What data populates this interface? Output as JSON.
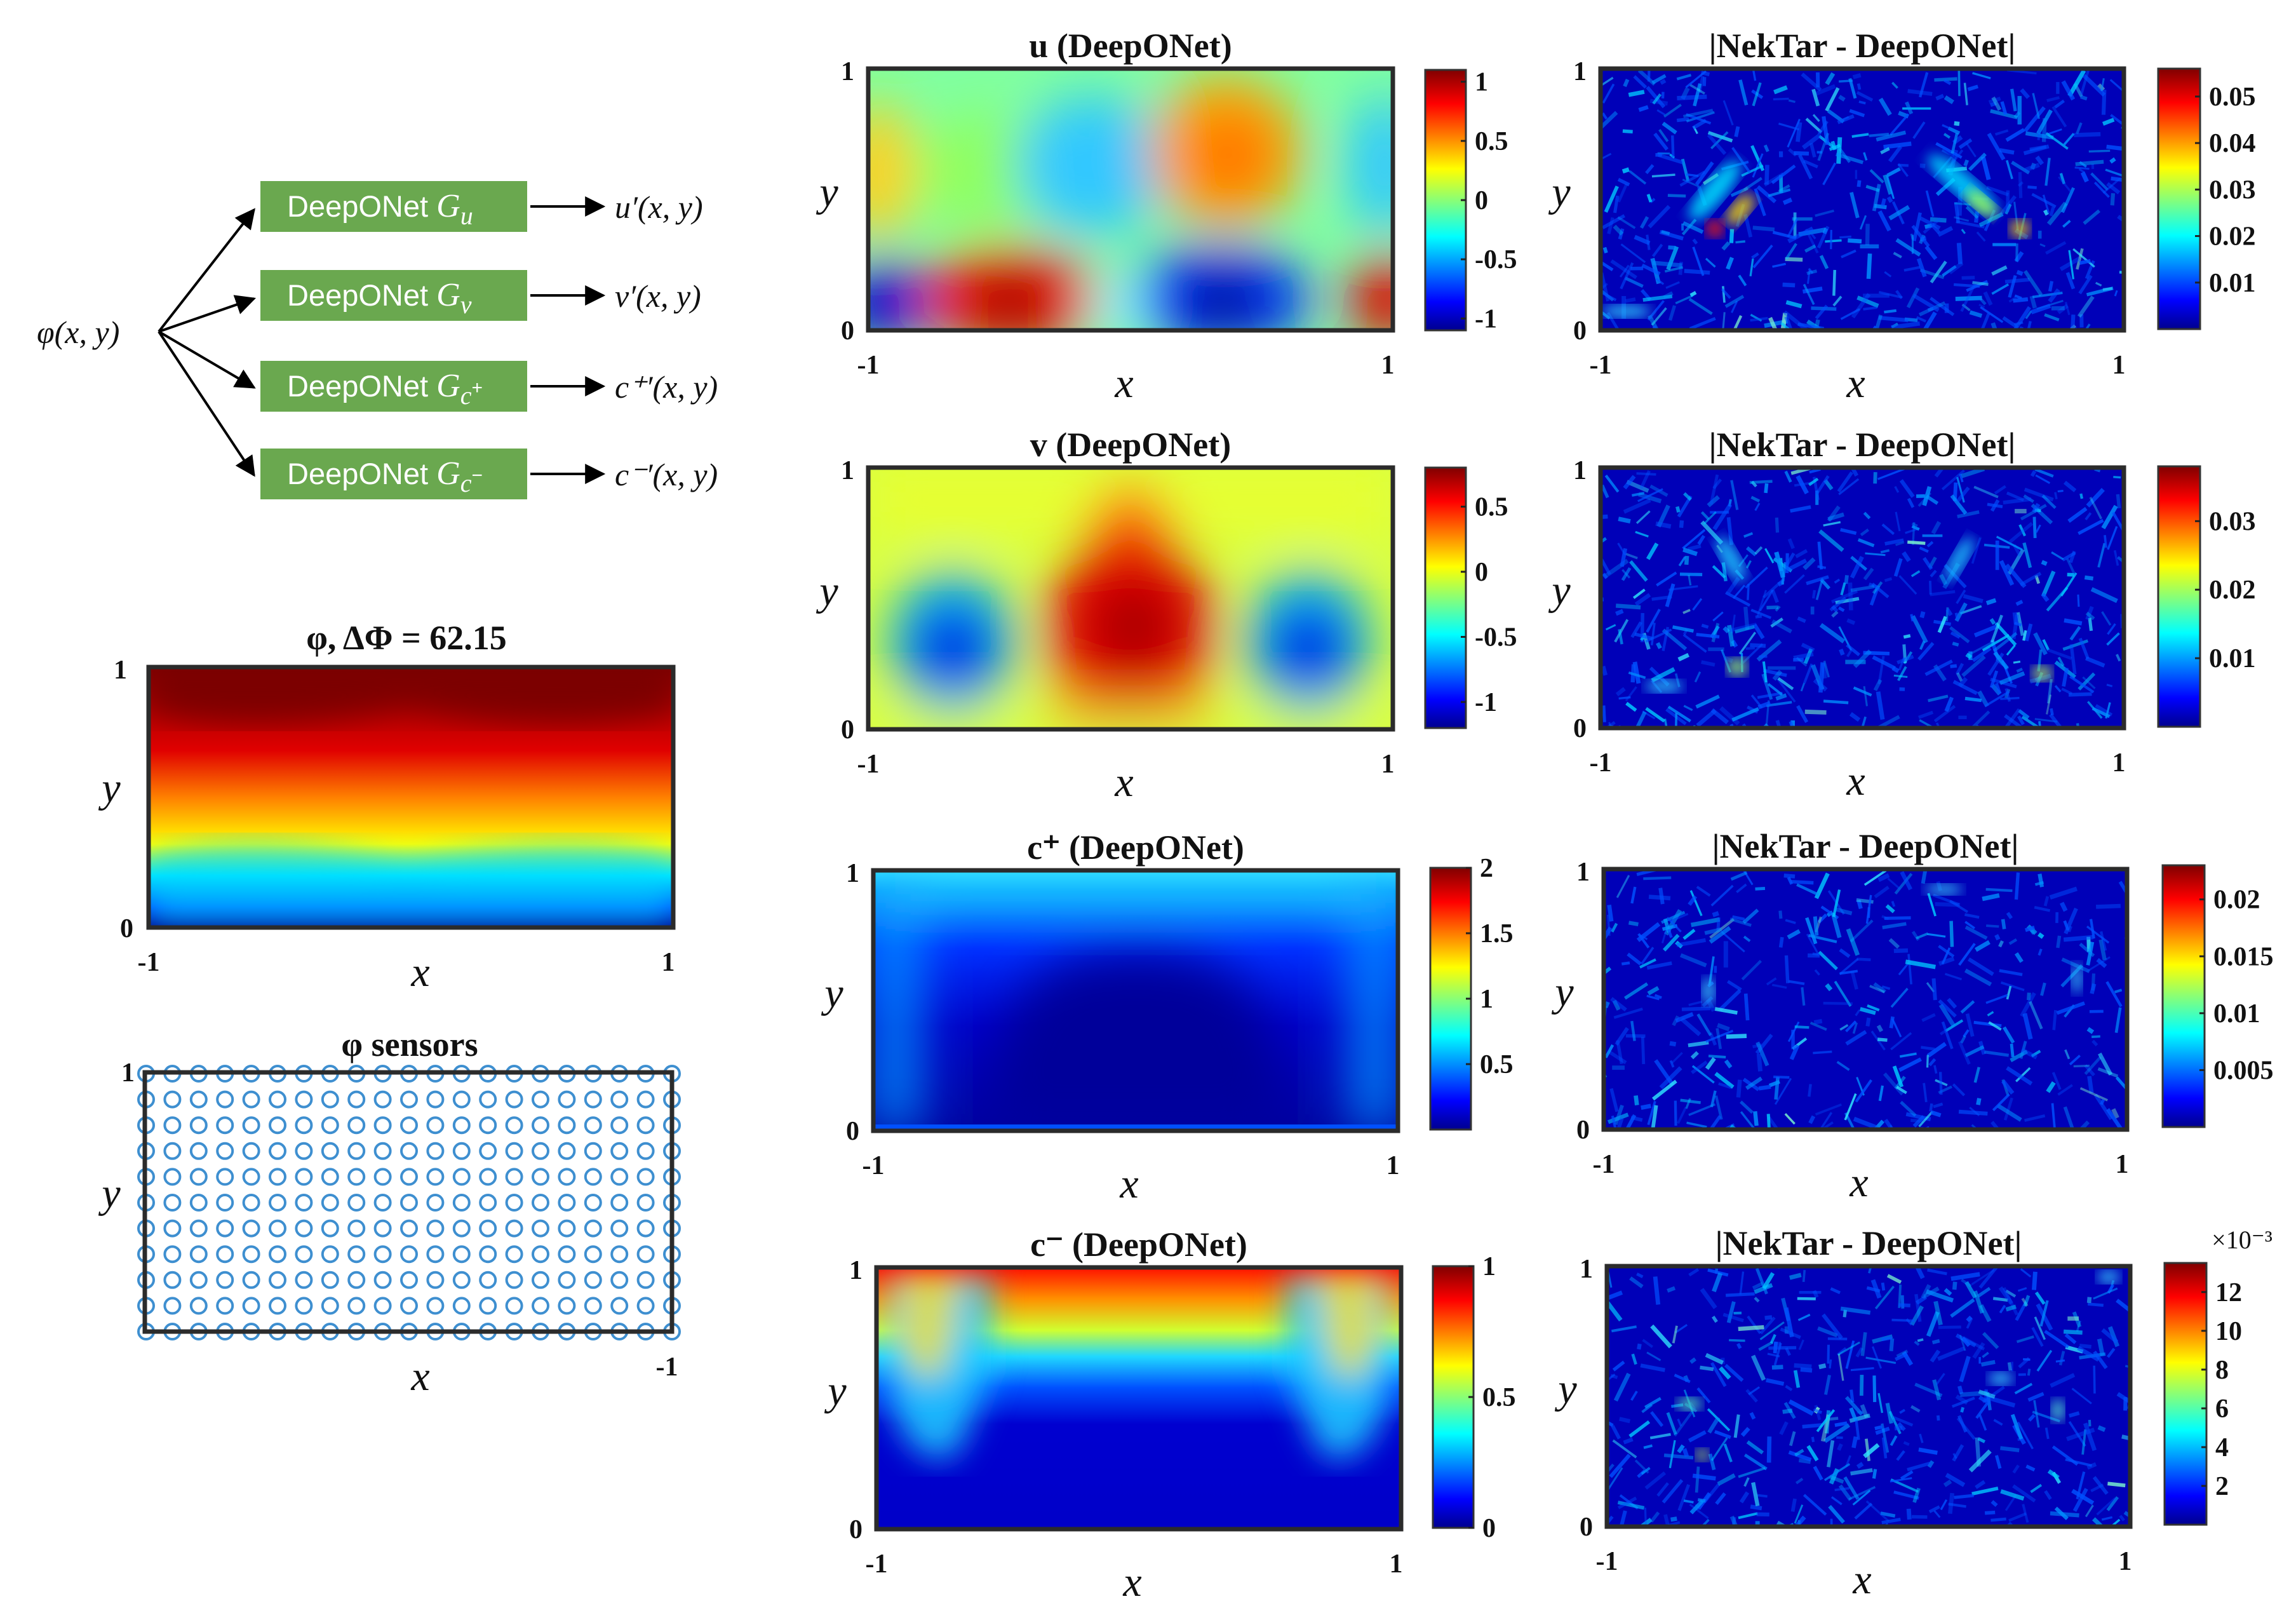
{
  "diagram": {
    "input_label": "φ(x, y)",
    "boxes": [
      {
        "text": "DeepONet",
        "sym": "G",
        "sub": "u",
        "sup": "",
        "output": "u′(x, y)"
      },
      {
        "text": "DeepONet",
        "sym": "G",
        "sub": "v",
        "sup": "",
        "output": "v′(x, y)"
      },
      {
        "text": "DeepONet",
        "sym": "G",
        "sub": "c",
        "sup": "+",
        "output": "c⁺′(x, y)"
      },
      {
        "text": "DeepONet",
        "sym": "G",
        "sub": "c",
        "sup": "−",
        "output": "c⁻′(x, y)"
      }
    ],
    "box_color": "#6aa84f"
  },
  "chart_data": [
    {
      "id": "phi",
      "type": "heatmap",
      "title": "φ, ΔΦ = 62.15",
      "xlabel": "x",
      "ylabel": "y",
      "xlim": [
        -1,
        1
      ],
      "ylim": [
        0,
        1
      ],
      "xticks": [
        "-1",
        "1"
      ],
      "yticks": [
        "0",
        "1"
      ]
    },
    {
      "id": "sensors",
      "type": "scatter",
      "title": "φ sensors",
      "xlabel": "x",
      "ylabel": "y",
      "xticks": [
        "-1"
      ],
      "yticks": [
        "1"
      ],
      "grid_cols": 21,
      "grid_rows": 11,
      "marker": "open circle",
      "marker_color": "#3e8fd0"
    },
    {
      "id": "u",
      "type": "heatmap",
      "title": "u (DeepONet)",
      "xlabel": "x",
      "ylabel": "y",
      "xlim": [
        -1,
        1
      ],
      "ylim": [
        0,
        1
      ],
      "xticks": [
        "-1",
        "1"
      ],
      "yticks": [
        "0",
        "1"
      ],
      "colorbar": {
        "ticks": [
          "1",
          "0.5",
          "0",
          "-0.5",
          "-1"
        ],
        "range": [
          -1.1,
          1.1
        ]
      }
    },
    {
      "id": "u_err",
      "type": "heatmap",
      "title": "|NekTar - DeepONet|",
      "xlabel": "x",
      "ylabel": "y",
      "xlim": [
        -1,
        1
      ],
      "ylim": [
        0,
        1
      ],
      "xticks": [
        "-1",
        "1"
      ],
      "yticks": [
        "0",
        "1"
      ],
      "colorbar": {
        "ticks": [
          "0.05",
          "0.04",
          "0.03",
          "0.02",
          "0.01"
        ],
        "range": [
          0,
          0.056
        ]
      }
    },
    {
      "id": "v",
      "type": "heatmap",
      "title": "v (DeepONet)",
      "xlabel": "x",
      "ylabel": "y",
      "xlim": [
        -1,
        1
      ],
      "ylim": [
        0,
        1
      ],
      "xticks": [
        "-1",
        "1"
      ],
      "yticks": [
        "0",
        "1"
      ],
      "colorbar": {
        "ticks": [
          "0.5",
          "0",
          "-0.5",
          "-1"
        ],
        "range": [
          -1.2,
          0.8
        ]
      }
    },
    {
      "id": "v_err",
      "type": "heatmap",
      "title": "|NekTar - DeepONet|",
      "xlabel": "x",
      "ylabel": "y",
      "xlim": [
        -1,
        1
      ],
      "ylim": [
        0,
        1
      ],
      "xticks": [
        "-1",
        "1"
      ],
      "yticks": [
        "0",
        "1"
      ],
      "colorbar": {
        "ticks": [
          "0.03",
          "0.02",
          "0.01"
        ],
        "range": [
          0,
          0.038
        ]
      }
    },
    {
      "id": "cp",
      "type": "heatmap",
      "title": "c⁺ (DeepONet)",
      "xlabel": "x",
      "ylabel": "y",
      "xlim": [
        -1,
        1
      ],
      "ylim": [
        0,
        1
      ],
      "xticks": [
        "-1",
        "1"
      ],
      "yticks": [
        "0",
        "1"
      ],
      "colorbar": {
        "ticks": [
          "2",
          "1.5",
          "1",
          "0.5"
        ],
        "range": [
          0,
          2.0
        ]
      }
    },
    {
      "id": "cp_err",
      "type": "heatmap",
      "title": "|NekTar - DeepONet|",
      "xlabel": "x",
      "ylabel": "y",
      "xlim": [
        -1,
        1
      ],
      "ylim": [
        0,
        1
      ],
      "xticks": [
        "-1",
        "1"
      ],
      "yticks": [
        "0",
        "1"
      ],
      "colorbar": {
        "ticks": [
          "0.02",
          "0.015",
          "0.01",
          "0.005"
        ],
        "range": [
          0,
          0.023
        ]
      }
    },
    {
      "id": "cm",
      "type": "heatmap",
      "title": "c⁻ (DeepONet)",
      "xlabel": "x",
      "ylabel": "y",
      "xlim": [
        -1,
        1
      ],
      "ylim": [
        0,
        1
      ],
      "xticks": [
        "-1",
        "1"
      ],
      "yticks": [
        "0",
        "1"
      ],
      "colorbar": {
        "ticks": [
          "1",
          "0.5",
          "0"
        ],
        "range": [
          0,
          1.0
        ]
      }
    },
    {
      "id": "cm_err",
      "type": "heatmap",
      "title": "|NekTar - DeepONet|",
      "xlabel": "x",
      "ylabel": "y",
      "xlim": [
        -1,
        1
      ],
      "ylim": [
        0,
        1
      ],
      "xticks": [
        "-1",
        "1"
      ],
      "yticks": [
        "0",
        "1"
      ],
      "colorbar": {
        "ticks": [
          "12",
          "10",
          "8",
          "6",
          "4",
          "2"
        ],
        "range": [
          0,
          13.5
        ],
        "multiplier": "×10⁻³"
      }
    }
  ]
}
